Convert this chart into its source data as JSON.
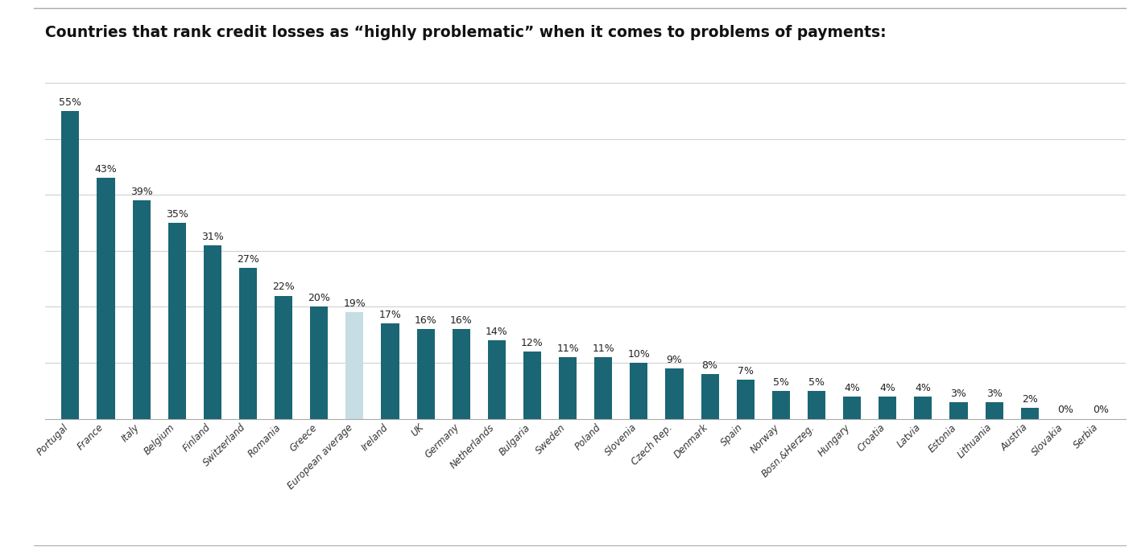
{
  "title": "Countries that rank credit losses as “highly problematic” when it comes to problems of payments:",
  "categories": [
    "Portugal",
    "France",
    "Italy",
    "Belgium",
    "Finland",
    "Switzerland",
    "Romania",
    "Greece",
    "European average",
    "Ireland",
    "UK",
    "Germany",
    "Netherlands",
    "Bulgaria",
    "Sweden",
    "Poland",
    "Slovenia",
    "Czech Rep.",
    "Denmark",
    "Spain",
    "Norway",
    "Bosn.&Herzeg.",
    "Hungary",
    "Croatia",
    "Latvia",
    "Estonia",
    "Lithuania",
    "Austria",
    "Slovakia",
    "Serbia"
  ],
  "values": [
    55,
    43,
    39,
    35,
    31,
    27,
    22,
    20,
    19,
    17,
    16,
    16,
    14,
    12,
    11,
    11,
    10,
    9,
    8,
    7,
    5,
    5,
    4,
    4,
    4,
    3,
    3,
    2,
    0,
    0
  ],
  "bar_color_default": "#1a6674",
  "bar_color_highlight": "#c5dde3",
  "highlight_index": 8,
  "background_color": "#ffffff",
  "label_fontsize": 9.0,
  "title_fontsize": 13.5,
  "tick_fontsize": 8.5,
  "ylim": [
    0,
    63
  ],
  "grid_color": "#d0d0d0",
  "bar_width": 0.5
}
